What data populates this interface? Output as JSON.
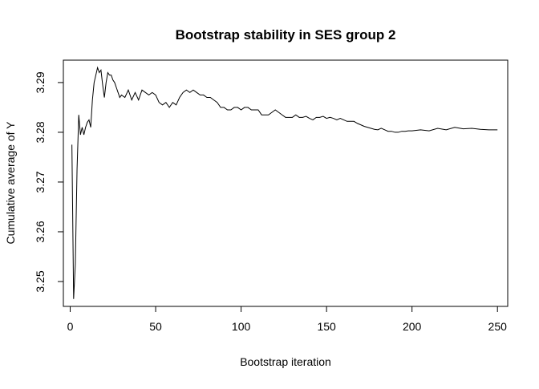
{
  "chart_data": {
    "type": "line",
    "title": "Bootstrap stability in SES group 2",
    "xlabel": "Bootstrap iteration",
    "ylabel": "Cumulative average of Y",
    "xlim": [
      -4,
      256
    ],
    "ylim": [
      3.245,
      3.2945
    ],
    "xticks": [
      0,
      50,
      100,
      150,
      200,
      250
    ],
    "yticks": [
      3.25,
      3.26,
      3.27,
      3.28,
      3.29
    ],
    "grid": false,
    "legend": "none",
    "line_color": "#000000",
    "series": [
      {
        "x": [
          1,
          2,
          3,
          4,
          5,
          6,
          7,
          8,
          9,
          10,
          11,
          12,
          13,
          14,
          15,
          16,
          17,
          18,
          19,
          20,
          21,
          22,
          23,
          24,
          25,
          26,
          27,
          28,
          29,
          30,
          32,
          34,
          36,
          38,
          40,
          42,
          44,
          46,
          48,
          50,
          52,
          54,
          56,
          58,
          60,
          62,
          64,
          66,
          68,
          70,
          72,
          74,
          76,
          78,
          80,
          82,
          84,
          86,
          88,
          90,
          92,
          94,
          96,
          98,
          100,
          102,
          104,
          106,
          108,
          110,
          112,
          114,
          116,
          118,
          120,
          122,
          124,
          126,
          128,
          130,
          132,
          134,
          136,
          138,
          140,
          142,
          144,
          146,
          148,
          150,
          152,
          154,
          156,
          158,
          160,
          162,
          164,
          166,
          168,
          170,
          172,
          174,
          176,
          178,
          180,
          182,
          184,
          186,
          188,
          190,
          192,
          194,
          196,
          198,
          200,
          205,
          210,
          215,
          220,
          225,
          230,
          235,
          240,
          245,
          250
        ],
        "y": [
          3.2775,
          3.2465,
          3.2535,
          3.2725,
          3.2835,
          3.2795,
          3.281,
          3.2795,
          3.281,
          3.282,
          3.2825,
          3.281,
          3.2865,
          3.29,
          3.2915,
          3.293,
          3.292,
          3.2925,
          3.2895,
          3.287,
          3.29,
          3.292,
          3.2915,
          3.2915,
          3.2905,
          3.29,
          3.289,
          3.288,
          3.287,
          3.2875,
          3.287,
          3.2885,
          3.2865,
          3.288,
          3.2865,
          3.2885,
          3.288,
          3.2875,
          3.288,
          3.2875,
          3.286,
          3.2855,
          3.286,
          3.285,
          3.286,
          3.2855,
          3.287,
          3.288,
          3.2885,
          3.288,
          3.2885,
          3.288,
          3.2875,
          3.2875,
          3.287,
          3.287,
          3.2865,
          3.286,
          3.285,
          3.285,
          3.2845,
          3.2845,
          3.285,
          3.285,
          3.2845,
          3.285,
          3.285,
          3.2845,
          3.2845,
          3.2845,
          3.2835,
          3.2835,
          3.2835,
          3.284,
          3.2845,
          3.284,
          3.2835,
          3.283,
          3.283,
          3.283,
          3.2835,
          3.283,
          3.283,
          3.2832,
          3.2828,
          3.2825,
          3.283,
          3.283,
          3.2832,
          3.2828,
          3.283,
          3.2828,
          3.2825,
          3.2828,
          3.2825,
          3.2822,
          3.2822,
          3.2822,
          3.2818,
          3.2815,
          3.2812,
          3.281,
          3.2808,
          3.2806,
          3.2805,
          3.2808,
          3.2805,
          3.2802,
          3.2802,
          3.28,
          3.28,
          3.2802,
          3.2802,
          3.2803,
          3.2803,
          3.2805,
          3.2803,
          3.2808,
          3.2805,
          3.281,
          3.2807,
          3.2808,
          3.2806,
          3.2805,
          3.2805
        ]
      }
    ]
  }
}
